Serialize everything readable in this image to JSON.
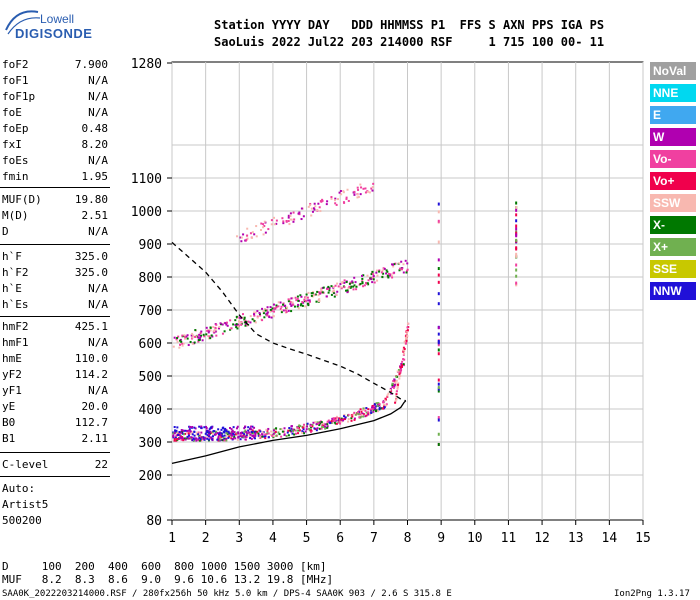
{
  "logo": {
    "line1": "Lowell",
    "line2": "DIGISONDE"
  },
  "header": {
    "line1": "Station YYYY DAY   DDD HHMMSS P1  FFS S AXN PPS IGA PS",
    "line2": "SaoLuis 2022 Jul22 203 214000 RSF     1 715 100 00- 11"
  },
  "params": {
    "group1": [
      {
        "name": "foF2",
        "value": "7.900"
      },
      {
        "name": "foF1",
        "value": "N/A"
      },
      {
        "name": "foF1p",
        "value": "N/A"
      },
      {
        "name": "foE",
        "value": "N/A"
      },
      {
        "name": "foEp",
        "value": "0.48"
      },
      {
        "name": "fxI",
        "value": "8.20"
      },
      {
        "name": "foEs",
        "value": "N/A"
      },
      {
        "name": "fmin",
        "value": "1.95"
      }
    ],
    "group2": [
      {
        "name": "MUF(D)",
        "value": "19.80"
      },
      {
        "name": "M(D)",
        "value": "2.51"
      },
      {
        "name": "D",
        "value": "N/A"
      }
    ],
    "group3": [
      {
        "name": "h`F",
        "value": "325.0"
      },
      {
        "name": "h`F2",
        "value": "325.0"
      },
      {
        "name": "h`E",
        "value": "N/A"
      },
      {
        "name": "h`Es",
        "value": "N/A"
      }
    ],
    "group4": [
      {
        "name": "hmF2",
        "value": "425.1"
      },
      {
        "name": "hmF1",
        "value": "N/A"
      },
      {
        "name": "hmE",
        "value": "110.0"
      },
      {
        "name": "yF2",
        "value": "114.2"
      },
      {
        "name": "yF1",
        "value": "N/A"
      },
      {
        "name": "yE",
        "value": "20.0"
      },
      {
        "name": "B0",
        "value": "112.7"
      },
      {
        "name": "B1",
        "value": "2.11"
      }
    ],
    "clevel": {
      "name": "C-level",
      "value": "22"
    },
    "auto": [
      "Auto:",
      "Artist5",
      "500200"
    ]
  },
  "legend": [
    {
      "label": "NoVal",
      "color": "#a0a0a0"
    },
    {
      "label": "NNE",
      "color": "#00d8f0"
    },
    {
      "label": "E",
      "color": "#40a8f0"
    },
    {
      "label": "W",
      "color": "#b000b0"
    },
    {
      "label": "Vo-",
      "color": "#f040a0"
    },
    {
      "label": "Vo+",
      "color": "#f0004c"
    },
    {
      "label": "SSW",
      "color": "#f8b8b0"
    },
    {
      "label": "X-",
      "color": "#007800"
    },
    {
      "label": "X+",
      "color": "#70b050"
    },
    {
      "label": "SSE",
      "color": "#c8c800"
    },
    {
      "label": "NNW",
      "color": "#2010d8"
    }
  ],
  "chart_data": {
    "type": "scatter",
    "xlim": [
      1,
      15
    ],
    "ylim": [
      80,
      1280
    ],
    "x_ticks": [
      "1",
      "2",
      "3",
      "4",
      "5",
      "6",
      "7",
      "8",
      "9",
      "10",
      "11",
      "12",
      "13",
      "14",
      "15"
    ],
    "y_ticks": [
      "80",
      "200",
      "300",
      "400",
      "500",
      "600",
      "700",
      "800",
      "900",
      "1000",
      "1100",
      "1280"
    ],
    "grid": true,
    "series": [
      {
        "color": "#000000",
        "style": "solid",
        "points": [
          [
            1,
            235
          ],
          [
            2,
            258
          ],
          [
            3,
            285
          ],
          [
            4,
            305
          ],
          [
            5,
            320
          ],
          [
            6,
            340
          ],
          [
            7,
            365
          ],
          [
            7.5,
            385
          ],
          [
            7.8,
            405
          ],
          [
            7.9,
            420
          ],
          [
            7.95,
            425
          ]
        ]
      },
      {
        "color": "#000000",
        "style": "dashed",
        "points": [
          [
            1,
            905
          ],
          [
            1.5,
            860
          ],
          [
            2,
            815
          ],
          [
            2.5,
            755
          ],
          [
            3,
            685
          ],
          [
            3.5,
            628
          ],
          [
            4,
            600
          ],
          [
            4.5,
            582
          ],
          [
            5,
            566
          ],
          [
            5.5,
            548
          ],
          [
            6,
            530
          ],
          [
            6.5,
            507
          ],
          [
            7,
            478
          ],
          [
            7.5,
            450
          ],
          [
            7.8,
            430
          ],
          [
            7.95,
            425
          ]
        ]
      }
    ]
  },
  "footer": {
    "d_row": "D     100  200  400  600  800 1000 1500 3000 [km]",
    "muf_row": "MUF   8.2  8.3  8.6  9.0  9.6 10.6 13.2 19.8 [MHz]",
    "info": "SAA0K_2022203214000.RSF / 280fx256h 50 kHz 5.0 km / DPS-4 SAA0K 903 / 2.6 S 315.8 E",
    "version": "Ion2Png 1.3.17"
  }
}
